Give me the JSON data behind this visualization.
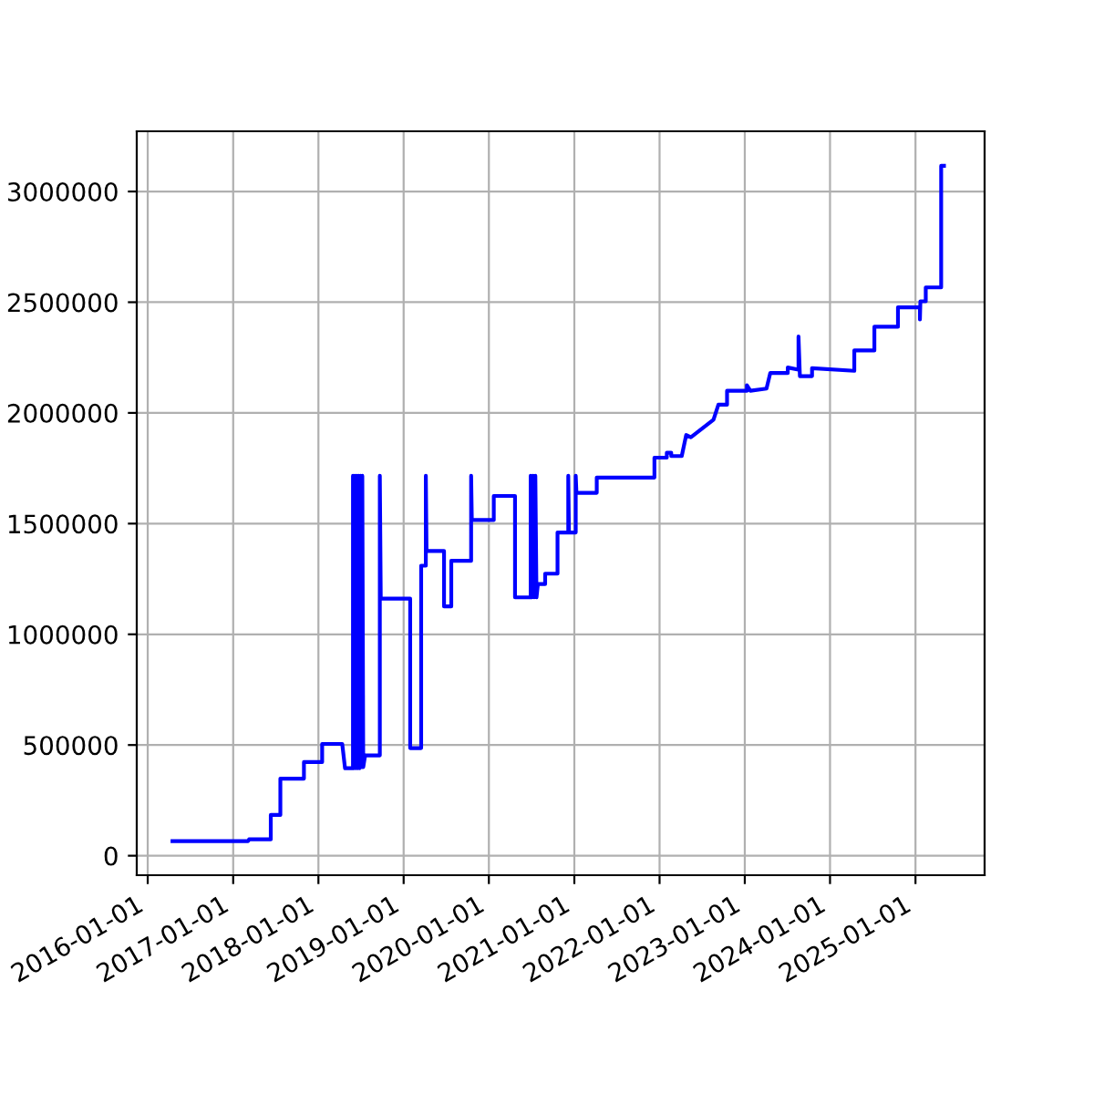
{
  "chart_data": {
    "type": "line",
    "color": "#0000ff",
    "grid": true,
    "x": [
      "2016-04-16",
      "2017-03-06",
      "2017-03-10",
      "2017-06-11",
      "2017-06-11",
      "2017-07-22",
      "2017-07-22",
      "2017-10-31",
      "2017-10-31",
      "2018-01-17",
      "2018-01-17",
      "2018-04-13",
      "2018-04-25",
      "2018-05-29",
      "2018-05-29",
      "2018-06-02",
      "2018-06-06",
      "2018-06-10",
      "2018-06-14",
      "2018-06-18",
      "2018-06-22",
      "2018-06-26",
      "2018-06-30",
      "2018-07-04",
      "2018-07-08",
      "2018-07-12",
      "2018-07-20",
      "2018-09-21",
      "2018-09-21",
      "2018-09-25",
      "2019-01-29",
      "2019-01-29",
      "2019-03-17",
      "2019-03-17",
      "2019-04-06",
      "2019-04-06",
      "2019-04-09",
      "2019-06-23",
      "2019-06-23",
      "2019-07-24",
      "2019-07-24",
      "2019-10-17",
      "2019-10-17",
      "2019-10-20",
      "2020-01-22",
      "2020-01-22",
      "2020-04-22",
      "2020-04-22",
      "2020-06-28",
      "2020-06-28",
      "2020-07-03",
      "2020-07-08",
      "2020-07-13",
      "2020-07-18",
      "2020-07-23",
      "2020-07-29",
      "2020-08-29",
      "2020-08-29",
      "2020-10-21",
      "2020-10-21",
      "2020-12-06",
      "2020-12-06",
      "2020-12-09",
      "2021-01-07",
      "2021-01-07",
      "2021-01-10",
      "2021-01-13",
      "2021-04-07",
      "2021-04-07",
      "2021-12-10",
      "2021-12-10",
      "2022-02-01",
      "2022-02-01",
      "2022-02-20",
      "2022-02-20",
      "2022-04-06",
      "2022-04-25",
      "2022-05-15",
      "2022-08-20",
      "2022-09-10",
      "2022-10-17",
      "2022-10-17",
      "2023-01-10",
      "2023-01-10",
      "2023-01-25",
      "2023-04-04",
      "2023-04-20",
      "2023-07-04",
      "2023-07-04",
      "2023-08-19",
      "2023-08-19",
      "2023-08-25",
      "2023-10-16",
      "2023-10-16",
      "2024-04-14",
      "2024-04-14",
      "2024-07-09",
      "2024-07-09",
      "2024-10-18",
      "2024-10-18",
      "2025-01-20",
      "2025-01-20",
      "2025-01-22",
      "2025-02-14",
      "2025-02-14",
      "2025-04-21",
      "2025-04-21",
      "2025-05-03"
    ],
    "values": [
      66000,
      66000,
      74000,
      74000,
      184000,
      184000,
      348000,
      348000,
      423000,
      423000,
      505000,
      505000,
      395000,
      395000,
      1716000,
      395000,
      1716000,
      395000,
      1716000,
      395000,
      1716000,
      395000,
      1716000,
      400000,
      1716000,
      400000,
      453000,
      453000,
      1716000,
      1161000,
      1161000,
      486000,
      486000,
      1310000,
      1310000,
      1716000,
      1376000,
      1376000,
      1126000,
      1126000,
      1332000,
      1332000,
      1716000,
      1516000,
      1516000,
      1625000,
      1625000,
      1167000,
      1167000,
      1716000,
      1167000,
      1716000,
      1167000,
      1716000,
      1167000,
      1227000,
      1227000,
      1274000,
      1274000,
      1460000,
      1460000,
      1716000,
      1460000,
      1460000,
      1716000,
      1639000,
      1639000,
      1639000,
      1708000,
      1708000,
      1798000,
      1798000,
      1820000,
      1820000,
      1805000,
      1805000,
      1900000,
      1890000,
      1969000,
      2037000,
      2037000,
      2100000,
      2100000,
      2125000,
      2100000,
      2110000,
      2180000,
      2180000,
      2205000,
      2195000,
      2345000,
      2166000,
      2166000,
      2202000,
      2190000,
      2282000,
      2282000,
      2389000,
      2389000,
      2477000,
      2477000,
      2422000,
      2504000,
      2504000,
      2567000,
      2567000,
      3116000,
      3116000
    ],
    "xlim": [
      "2015-11-15",
      "2025-10-24"
    ],
    "xticks": [
      "2016-01-01",
      "2017-01-01",
      "2018-01-01",
      "2019-01-01",
      "2020-01-01",
      "2021-01-01",
      "2022-01-01",
      "2023-01-01",
      "2024-01-01",
      "2025-01-01"
    ],
    "ylim": [
      -88000,
      3272000
    ],
    "yticks": [
      0,
      500000,
      1000000,
      1500000,
      2000000,
      2500000,
      3000000
    ]
  }
}
